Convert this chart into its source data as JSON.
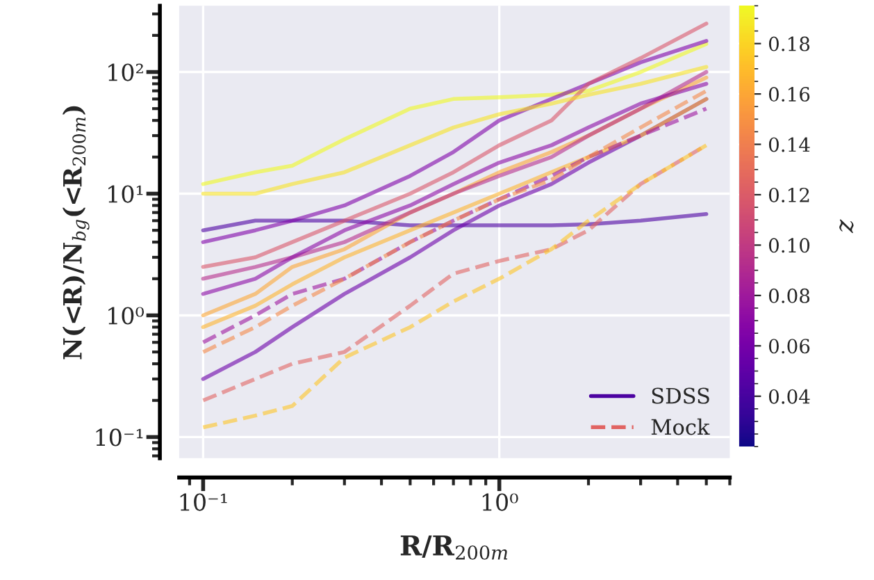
{
  "chart_data": {
    "type": "line",
    "xlabel": "R/R$_{200m}$",
    "ylabel": "N(<R)/N$_{bg}$(<R$_{200m}$)",
    "clabel": "z",
    "log": "xy",
    "grid": true,
    "legend": "bottom right",
    "xlim": [
      0.083,
      6.0
    ],
    "xticks": [
      {
        "value": 0.1,
        "label": "10⁻¹"
      },
      {
        "value": 1,
        "label": "10⁰"
      }
    ],
    "ylim": [
      0.067,
      350
    ],
    "yticks": [
      {
        "value": 0.1,
        "label": "10⁻¹"
      },
      {
        "value": 1,
        "label": "10⁰"
      },
      {
        "value": 10,
        "label": "10¹"
      },
      {
        "value": 100,
        "label": "10²"
      }
    ],
    "clim": [
      0.02,
      0.195
    ],
    "cticks": [
      {
        "value": 0.04,
        "label": "0.04"
      },
      {
        "value": 0.06,
        "label": "0.06"
      },
      {
        "value": 0.08,
        "label": "0.08"
      },
      {
        "value": 0.1,
        "label": "0.10"
      },
      {
        "value": 0.12,
        "label": "0.12"
      },
      {
        "value": 0.14,
        "label": "0.14"
      },
      {
        "value": 0.16,
        "label": "0.16"
      },
      {
        "value": 0.18,
        "label": "0.18"
      }
    ],
    "x": [
      0.1,
      0.15,
      0.2,
      0.3,
      0.5,
      0.7,
      1,
      1.5,
      2,
      3,
      5
    ],
    "series": [
      {
        "name": "SDSS",
        "line_style": "solid",
        "color": "#4c02a1",
        "values": [
          5,
          6,
          6,
          6,
          5.5,
          5.5,
          5.5,
          5.5,
          5.6,
          6,
          6.8
        ]
      },
      {
        "line_style": "solid",
        "color": "#eff821",
        "values": [
          12,
          15,
          17,
          28,
          50,
          60,
          62,
          65,
          70,
          100,
          170
        ]
      },
      {
        "line_style": "solid",
        "color": "#7e03a8",
        "values": [
          4,
          5,
          6,
          8,
          14,
          22,
          40,
          60,
          80,
          120,
          180
        ]
      },
      {
        "line_style": "solid",
        "color": "#fca636",
        "values": [
          1,
          1.5,
          2.5,
          3.5,
          7,
          10,
          15,
          22,
          30,
          50,
          90
        ]
      },
      {
        "line_style": "solid",
        "color": "#b52f8c",
        "values": [
          2,
          2.5,
          3,
          4,
          7,
          10,
          14,
          20,
          30,
          50,
          100
        ]
      },
      {
        "line_style": "solid",
        "color": "#6a00a8",
        "values": [
          0.3,
          0.5,
          0.8,
          1.5,
          3,
          5,
          8,
          12,
          18,
          30,
          60
        ]
      },
      {
        "line_style": "solid",
        "color": "#d8576b",
        "values": [
          2.5,
          3,
          4,
          6,
          10,
          15,
          25,
          40,
          80,
          130,
          250
        ]
      },
      {
        "line_style": "solid",
        "color": "#fdb42f",
        "values": [
          0.8,
          1.2,
          1.8,
          3,
          5,
          7,
          10,
          15,
          20,
          30,
          60
        ]
      },
      {
        "line_style": "solid",
        "color": "#f7e225",
        "values": [
          10,
          10,
          12,
          15,
          25,
          35,
          45,
          55,
          65,
          80,
          110
        ]
      },
      {
        "line_style": "solid",
        "color": "#8b0aa5",
        "values": [
          1.5,
          2,
          3,
          5,
          8,
          12,
          18,
          25,
          35,
          55,
          80
        ]
      },
      {
        "name": "Mock",
        "line_style": "dashed",
        "color": "#e16462",
        "values": [
          0.2,
          0.3,
          0.4,
          0.5,
          1.2,
          2.2,
          2.8,
          3.5,
          5,
          12,
          25
        ]
      },
      {
        "line_style": "dashed",
        "color": "#fdc527",
        "values": [
          0.12,
          0.15,
          0.18,
          0.45,
          0.8,
          1.3,
          2,
          3.5,
          6,
          12,
          25
        ]
      },
      {
        "line_style": "dashed",
        "color": "#9c179e",
        "values": [
          0.6,
          1,
          1.5,
          2,
          4,
          6,
          9,
          14,
          20,
          30,
          50
        ]
      },
      {
        "line_style": "dashed",
        "color": "#f48849",
        "values": [
          0.5,
          0.8,
          1.2,
          2,
          4,
          6,
          9,
          13,
          20,
          35,
          70
        ]
      }
    ]
  }
}
